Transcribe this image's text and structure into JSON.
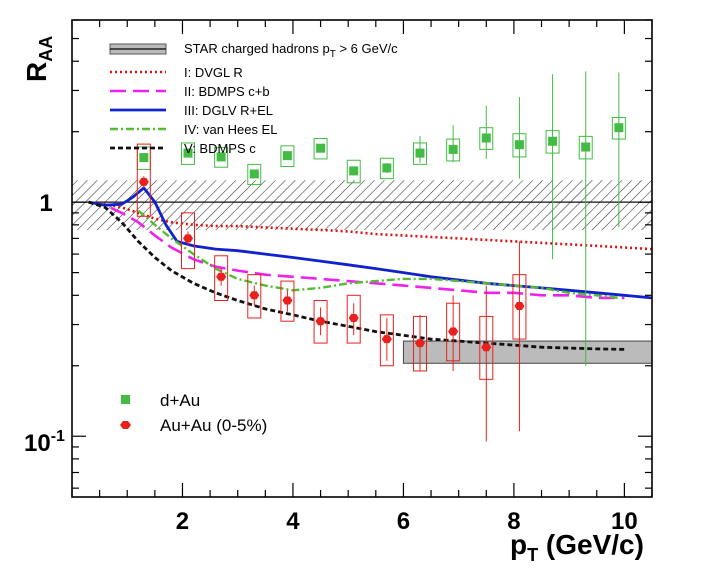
{
  "chart_data": {
    "type": "scatter",
    "title": "",
    "xlabel": "p",
    "xlabel_sub": "T",
    "xlabel_unit": " (GeV/c)",
    "ylabel": "R",
    "ylabel_sub": "AA",
    "xlim": [
      0,
      10.5
    ],
    "ylim": [
      0.055,
      6.0
    ],
    "yscale": "log",
    "x_ticks": [
      2,
      4,
      6,
      8,
      10
    ],
    "x_tick_labels": [
      "2",
      "4",
      "6",
      "8",
      "10"
    ],
    "y_tick_labels": {
      "one": "1",
      "tenth_base": "10",
      "tenth_exp": "-1"
    },
    "reference_line": 1,
    "reference_band": [
      0.76,
      1.24
    ],
    "star_band": {
      "label": "STAR charged hadrons p",
      "label_sub": "T",
      "label_tail": " > 6 GeV/c",
      "x": [
        6,
        10.5
      ],
      "y": [
        0.205,
        0.255
      ],
      "color": "#bbbbbb"
    },
    "series": [
      {
        "name": "d+Au",
        "marker": "square",
        "color": "#44bb44",
        "x": [
          1.3,
          2.1,
          2.7,
          3.3,
          3.9,
          4.5,
          5.1,
          5.7,
          6.3,
          6.9,
          7.5,
          8.1,
          8.7,
          9.3,
          9.9
        ],
        "y": [
          1.55,
          1.62,
          1.56,
          1.32,
          1.58,
          1.7,
          1.36,
          1.4,
          1.62,
          1.68,
          1.88,
          1.76,
          1.82,
          1.72,
          2.08
        ],
        "box": [
          0.17,
          0.17,
          0.15,
          0.13,
          0.16,
          0.17,
          0.15,
          0.14,
          0.17,
          0.18,
          0.2,
          0.2,
          0.2,
          0.19,
          0.22
        ],
        "err_lo": [
          0.03,
          0.04,
          0.04,
          0.04,
          0.05,
          0.06,
          0.06,
          0.07,
          0.15,
          0.2,
          0.35,
          0.5,
          1.25,
          1.52,
          1.3
        ],
        "err_hi": [
          0.03,
          0.04,
          0.04,
          0.04,
          0.05,
          0.06,
          0.06,
          0.07,
          0.3,
          0.45,
          0.7,
          1.05,
          1.7,
          1.9,
          1.5
        ]
      },
      {
        "name": "Au+Au (0-5%)",
        "marker": "circle",
        "color": "#e8211c",
        "x": [
          1.3,
          2.1,
          2.7,
          3.3,
          3.9,
          4.5,
          5.1,
          5.7,
          6.3,
          6.9,
          7.5,
          8.1
        ],
        "y": [
          1.22,
          0.7,
          0.48,
          0.4,
          0.38,
          0.31,
          0.32,
          0.26,
          0.25,
          0.28,
          0.24,
          0.36
        ],
        "box_lo": [
          0.35,
          0.18,
          0.1,
          0.08,
          0.07,
          0.06,
          0.07,
          0.06,
          0.06,
          0.07,
          0.065,
          0.1
        ],
        "box_hi": [
          0.55,
          0.2,
          0.11,
          0.09,
          0.08,
          0.07,
          0.08,
          0.07,
          0.075,
          0.09,
          0.085,
          0.13
        ],
        "err_lo": [
          0.07,
          0.05,
          0.04,
          0.04,
          0.04,
          0.04,
          0.05,
          0.05,
          0.06,
          0.09,
          0.145,
          0.255
        ],
        "err_hi": [
          0.07,
          0.05,
          0.04,
          0.04,
          0.04,
          0.045,
          0.05,
          0.06,
          0.08,
          0.12,
          0.2,
          0.32
        ]
      }
    ],
    "curves": [
      {
        "name": "I: DVGL R",
        "color": "#dd1111",
        "dash": "2,3",
        "width": 2.6,
        "x": [
          0.3,
          0.6,
          0.9,
          1.2,
          1.5,
          1.8,
          2.2,
          2.6,
          3.0,
          3.5,
          4.0,
          4.5,
          5.0,
          5.5,
          6.0,
          6.5,
          7.0,
          7.5,
          8.0,
          8.5,
          9.0,
          9.5,
          10.0,
          10.5
        ],
        "y": [
          1.0,
          0.98,
          0.95,
          0.9,
          0.85,
          0.82,
          0.8,
          0.79,
          0.79,
          0.78,
          0.77,
          0.76,
          0.75,
          0.73,
          0.72,
          0.71,
          0.7,
          0.69,
          0.68,
          0.67,
          0.66,
          0.65,
          0.64,
          0.63
        ]
      },
      {
        "name": "II: BDMPS c+b",
        "color": "#ee22ee",
        "dash": "16,7",
        "width": 2.6,
        "x": [
          0.3,
          0.6,
          0.9,
          1.2,
          1.5,
          1.8,
          2.2,
          2.6,
          3.0,
          3.5,
          4.0,
          4.5,
          5.0,
          5.5,
          6.0,
          6.5,
          7.0,
          7.5,
          8.0,
          8.5,
          9.0,
          9.5,
          10.0
        ],
        "y": [
          1.0,
          0.97,
          0.9,
          0.82,
          0.72,
          0.64,
          0.57,
          0.53,
          0.51,
          0.49,
          0.48,
          0.47,
          0.46,
          0.45,
          0.44,
          0.43,
          0.42,
          0.41,
          0.41,
          0.4,
          0.4,
          0.39,
          0.39
        ]
      },
      {
        "name": "III: DGLV R+EL",
        "color": "#1122cc",
        "dash": "",
        "width": 2.8,
        "x": [
          0.3,
          0.6,
          0.9,
          1.1,
          1.3,
          1.5,
          1.7,
          1.9,
          2.2,
          2.6,
          3.0,
          3.5,
          4.0,
          4.5,
          5.0,
          5.5,
          6.0,
          6.5,
          7.0,
          7.5,
          8.0,
          8.5,
          9.0,
          9.5,
          10.0,
          10.5
        ],
        "y": [
          1.0,
          0.97,
          0.98,
          1.05,
          1.15,
          1.0,
          0.8,
          0.68,
          0.65,
          0.63,
          0.62,
          0.6,
          0.58,
          0.56,
          0.54,
          0.52,
          0.5,
          0.48,
          0.465,
          0.45,
          0.44,
          0.43,
          0.42,
          0.41,
          0.4,
          0.39
        ]
      },
      {
        "name": "IV: van Hees EL",
        "color": "#55bb33",
        "dash": "8,3,2,3",
        "width": 2.4,
        "x": [
          1.2,
          1.5,
          1.8,
          2.2,
          2.6,
          3.0,
          3.5,
          4.0,
          4.5,
          5.0,
          5.5,
          6.0,
          6.5,
          7.0,
          7.5,
          8.0,
          8.5,
          9.0,
          9.5,
          9.9
        ],
        "y": [
          0.92,
          0.8,
          0.7,
          0.6,
          0.52,
          0.47,
          0.44,
          0.42,
          0.43,
          0.45,
          0.46,
          0.47,
          0.47,
          0.46,
          0.45,
          0.44,
          0.43,
          0.41,
          0.4,
          0.39
        ]
      },
      {
        "name": "V: BDMPS c",
        "color": "#111111",
        "dash": "5,3",
        "width": 2.8,
        "x": [
          0.3,
          0.6,
          0.9,
          1.2,
          1.5,
          1.8,
          2.2,
          2.6,
          3.0,
          3.5,
          4.0,
          4.5,
          5.0,
          5.5,
          6.0,
          6.5,
          7.0,
          7.5,
          8.0,
          8.5,
          9.0,
          9.5,
          10.0
        ],
        "y": [
          1.0,
          0.95,
          0.82,
          0.68,
          0.58,
          0.51,
          0.45,
          0.41,
          0.38,
          0.35,
          0.33,
          0.31,
          0.295,
          0.28,
          0.27,
          0.26,
          0.255,
          0.25,
          0.245,
          0.24,
          0.238,
          0.236,
          0.235
        ]
      }
    ],
    "legend_position": "top-center",
    "legend_markers_position": "lower-left"
  }
}
